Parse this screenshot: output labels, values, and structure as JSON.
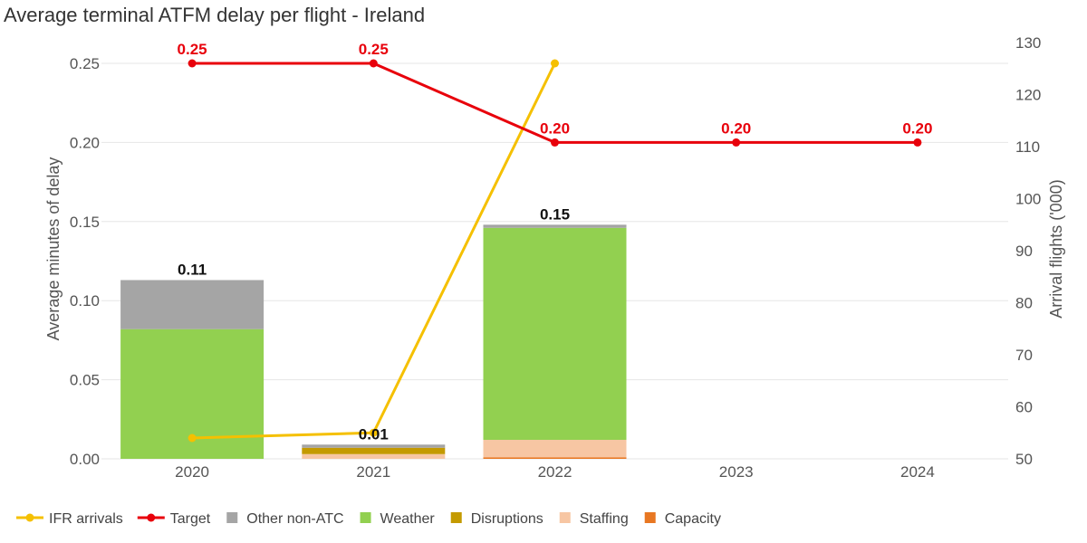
{
  "chart_data": {
    "type": "bar",
    "title": "Average terminal ATFM delay per flight - Ireland",
    "ylabel": "Average minutes of delay",
    "y2label": "Arrival flights ('000)",
    "categories": [
      "2020",
      "2021",
      "2022",
      "2023",
      "2024"
    ],
    "ylim": [
      0,
      0.25
    ],
    "yticks": [
      "0.00",
      "0.05",
      "0.10",
      "0.15",
      "0.20",
      "0.25"
    ],
    "y2lim": [
      50,
      130
    ],
    "y2ticks": [
      "50",
      "60",
      "70",
      "80",
      "90",
      "100",
      "110",
      "120",
      "130"
    ],
    "stack_order": [
      "Capacity",
      "Staffing",
      "Disruptions",
      "Weather",
      "Other non-ATC"
    ],
    "series": [
      {
        "name": "Capacity",
        "color": "#e87722",
        "values": [
          0,
          0,
          0.001,
          null,
          null
        ]
      },
      {
        "name": "Staffing",
        "color": "#f7c6a3",
        "values": [
          0,
          0.003,
          0.011,
          null,
          null
        ]
      },
      {
        "name": "Disruptions",
        "color": "#c49a00",
        "values": [
          0,
          0.004,
          0,
          null,
          null
        ]
      },
      {
        "name": "Weather",
        "color": "#92d050",
        "values": [
          0.082,
          0,
          0.134,
          null,
          null
        ]
      },
      {
        "name": "Other non-ATC",
        "color": "#a5a5a5",
        "values": [
          0.031,
          0.002,
          0.002,
          null,
          null
        ]
      }
    ],
    "totals": [
      "0.11",
      "0.01",
      "0.15",
      "",
      ""
    ],
    "lines": [
      {
        "name": "IFR arrivals",
        "color": "#f5c000",
        "axis": "right",
        "values": [
          54,
          55,
          126,
          null,
          null
        ]
      },
      {
        "name": "Target",
        "color": "#e8000b",
        "axis": "left",
        "values": [
          0.25,
          0.25,
          0.2,
          0.2,
          0.2
        ],
        "labels": [
          "0.25",
          "0.25",
          "0.20",
          "0.20",
          "0.20"
        ]
      }
    ],
    "legend": [
      {
        "name": "IFR arrivals",
        "kind": "line",
        "color": "#f5c000"
      },
      {
        "name": "Target",
        "kind": "line",
        "color": "#e8000b"
      },
      {
        "name": "Other non-ATC",
        "kind": "box",
        "color": "#a5a5a5"
      },
      {
        "name": "Weather",
        "kind": "box",
        "color": "#92d050"
      },
      {
        "name": "Disruptions",
        "kind": "box",
        "color": "#c49a00"
      },
      {
        "name": "Staffing",
        "kind": "box",
        "color": "#f7c6a3"
      },
      {
        "name": "Capacity",
        "kind": "box",
        "color": "#e87722"
      }
    ],
    "legend_position": "bottom-left",
    "grid": true
  }
}
